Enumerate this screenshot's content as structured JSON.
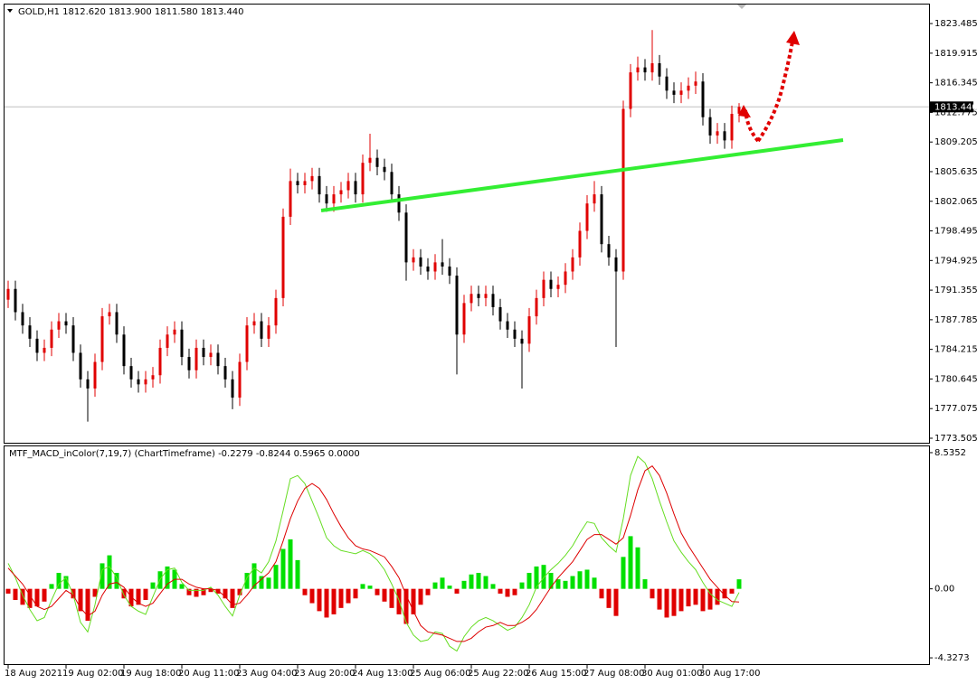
{
  "chart_data": [
    {
      "type": "candlestick",
      "title": "GOLD,H1  1812.620 1813.900 1811.580 1813.440",
      "categories": [
        "18 Aug 2021",
        null,
        null,
        null,
        null,
        null,
        null,
        null,
        "19 Aug 02:00",
        null,
        null,
        null,
        null,
        null,
        null,
        null,
        "19 Aug 18:00",
        null,
        null,
        null,
        null,
        null,
        null,
        null,
        "20 Aug 11:00",
        null,
        null,
        null,
        null,
        null,
        null,
        null,
        "23 Aug 04:00",
        null,
        null,
        null,
        null,
        null,
        null,
        null,
        "23 Aug 20:00",
        null,
        null,
        null,
        null,
        null,
        null,
        null,
        "24 Aug 13:00",
        null,
        null,
        null,
        null,
        null,
        null,
        null,
        "25 Aug 06:00",
        null,
        null,
        null,
        null,
        null,
        null,
        null,
        "25 Aug 22:00",
        null,
        null,
        null,
        null,
        null,
        null,
        null,
        "26 Aug 15:00",
        null,
        null,
        null,
        null,
        null,
        null,
        null,
        "27 Aug 08:00",
        null,
        null,
        null,
        null,
        null,
        null,
        null,
        "30 Aug 01:00",
        null,
        null,
        null,
        null,
        null,
        null,
        null,
        "30 Aug 17:00",
        null,
        null,
        null,
        null,
        null
      ],
      "open": [
        1790.2,
        1791.5,
        1788.7,
        1787.1,
        1785.5,
        1783.8,
        1784.4,
        1786.6,
        1787.6,
        1787.1,
        1783.8,
        1780.6,
        1779.5,
        1782.7,
        1788.2,
        1788.7,
        1786.0,
        1782.2,
        1780.6,
        1780.0,
        1780.6,
        1781.1,
        1784.4,
        1786.0,
        1786.6,
        1783.3,
        1781.7,
        1784.4,
        1783.3,
        1783.8,
        1782.2,
        1780.6,
        1778.4,
        1782.7,
        1787.1,
        1787.6,
        1785.5,
        1787.1,
        1790.4,
        1800.2,
        1804.5,
        1804.0,
        1804.5,
        1805.1,
        1802.9,
        1801.8,
        1802.9,
        1803.4,
        1804.5,
        1802.9,
        1806.7,
        1807.3,
        1806.2,
        1805.6,
        1802.9,
        1800.7,
        1794.7,
        1795.3,
        1794.2,
        1793.6,
        1794.7,
        1794.2,
        1793.1,
        1786.0,
        1789.8,
        1790.9,
        1790.4,
        1790.9,
        1789.3,
        1787.6,
        1786.6,
        1785.5,
        1784.9,
        1788.2,
        1790.4,
        1792.6,
        1791.5,
        1792.0,
        1793.6,
        1795.3,
        1798.5,
        1801.8,
        1802.9,
        1796.9,
        1795.3,
        1793.6,
        1813.2,
        1817.6,
        1818.2,
        1817.6,
        1818.7,
        1817.1,
        1815.4,
        1814.9,
        1815.4,
        1816.0,
        1816.5,
        1812.2,
        1810.0,
        1810.5,
        1809.4,
        1812.62
      ],
      "high": [
        1792.5,
        1792.5,
        1789.7,
        1788.1,
        1786.5,
        1785.4,
        1787.6,
        1788.6,
        1788.6,
        1788.1,
        1784.8,
        1781.6,
        1783.7,
        1789.2,
        1789.7,
        1789.7,
        1787.0,
        1783.2,
        1781.6,
        1781.6,
        1782.1,
        1785.4,
        1787.0,
        1787.6,
        1787.6,
        1784.3,
        1785.4,
        1785.4,
        1784.8,
        1784.8,
        1783.2,
        1781.6,
        1783.7,
        1788.1,
        1788.6,
        1788.6,
        1788.1,
        1791.4,
        1801.2,
        1806.0,
        1805.5,
        1805.5,
        1806.1,
        1806.1,
        1803.9,
        1803.9,
        1804.4,
        1805.5,
        1805.5,
        1807.7,
        1810.2,
        1808.3,
        1807.2,
        1806.6,
        1803.9,
        1801.7,
        1796.3,
        1796.3,
        1795.2,
        1795.7,
        1797.5,
        1795.2,
        1794.1,
        1790.8,
        1791.9,
        1791.9,
        1791.9,
        1791.9,
        1790.3,
        1788.6,
        1787.6,
        1786.5,
        1789.2,
        1791.4,
        1793.6,
        1793.6,
        1793.0,
        1794.6,
        1796.3,
        1799.5,
        1802.8,
        1804.5,
        1803.9,
        1797.9,
        1796.3,
        1814.2,
        1818.6,
        1819.5,
        1819.2,
        1822.7,
        1819.7,
        1818.1,
        1816.4,
        1816.4,
        1817.0,
        1817.7,
        1817.5,
        1813.2,
        1811.5,
        1811.5,
        1813.6,
        1813.9
      ],
      "low": [
        1789.2,
        1787.7,
        1786.1,
        1784.5,
        1782.8,
        1782.8,
        1783.4,
        1785.6,
        1786.1,
        1782.8,
        1779.6,
        1775.5,
        1778.5,
        1781.7,
        1787.2,
        1785.0,
        1781.2,
        1779.6,
        1779.0,
        1779.0,
        1779.6,
        1780.1,
        1783.4,
        1785.0,
        1782.3,
        1780.7,
        1780.7,
        1782.3,
        1782.3,
        1781.2,
        1779.6,
        1777.0,
        1777.4,
        1781.7,
        1786.1,
        1784.5,
        1784.5,
        1786.1,
        1789.4,
        1799.2,
        1803.0,
        1803.0,
        1803.5,
        1801.9,
        1800.8,
        1800.8,
        1801.9,
        1802.4,
        1801.9,
        1801.9,
        1805.7,
        1805.2,
        1804.6,
        1801.9,
        1799.7,
        1792.5,
        1793.7,
        1793.2,
        1792.6,
        1792.6,
        1793.2,
        1792.1,
        1781.2,
        1785.0,
        1788.8,
        1789.4,
        1789.4,
        1788.3,
        1786.6,
        1785.6,
        1784.5,
        1779.5,
        1783.9,
        1787.2,
        1789.4,
        1790.5,
        1790.5,
        1791.0,
        1792.6,
        1794.3,
        1797.5,
        1800.8,
        1795.9,
        1794.3,
        1784.5,
        1792.6,
        1812.2,
        1816.6,
        1816.6,
        1816.6,
        1816.1,
        1814.4,
        1813.9,
        1813.9,
        1814.4,
        1815.0,
        1811.2,
        1809.0,
        1809.0,
        1808.4,
        1808.4,
        1811.58
      ],
      "close": [
        1791.5,
        1788.7,
        1787.1,
        1785.5,
        1783.8,
        1784.4,
        1786.6,
        1787.6,
        1787.1,
        1783.8,
        1780.6,
        1779.5,
        1782.7,
        1788.2,
        1788.7,
        1786.0,
        1782.2,
        1780.6,
        1780.0,
        1780.6,
        1781.1,
        1784.4,
        1786.0,
        1786.6,
        1783.3,
        1781.7,
        1784.4,
        1783.3,
        1783.8,
        1782.2,
        1780.6,
        1778.4,
        1782.7,
        1787.1,
        1787.6,
        1785.5,
        1787.1,
        1790.4,
        1800.2,
        1804.5,
        1804.0,
        1804.5,
        1805.1,
        1802.9,
        1801.8,
        1802.9,
        1803.4,
        1804.5,
        1802.9,
        1806.7,
        1807.3,
        1806.2,
        1805.6,
        1802.9,
        1800.7,
        1794.7,
        1795.3,
        1794.2,
        1793.6,
        1794.7,
        1794.2,
        1793.1,
        1786.0,
        1789.8,
        1790.9,
        1790.4,
        1790.9,
        1789.3,
        1787.6,
        1786.6,
        1785.5,
        1784.9,
        1788.2,
        1790.4,
        1792.6,
        1791.5,
        1792.0,
        1793.6,
        1795.3,
        1798.5,
        1801.8,
        1802.9,
        1796.9,
        1795.3,
        1793.6,
        1813.2,
        1817.6,
        1818.2,
        1817.6,
        1818.7,
        1817.1,
        1815.4,
        1814.9,
        1815.4,
        1816.0,
        1816.5,
        1812.2,
        1810.0,
        1810.5,
        1809.4,
        1812.6,
        1813.44
      ],
      "up_color": "#e00000",
      "down_color": "#000000",
      "ylim": [
        1772.96,
        1825.78
      ],
      "yticks": [
        1823.485,
        1819.915,
        1816.345,
        1812.775,
        1809.205,
        1805.635,
        1802.065,
        1798.495,
        1794.925,
        1791.355,
        1787.785,
        1784.215,
        1780.645,
        1777.075,
        1773.505
      ],
      "last_price": {
        "value": 1813.44,
        "label": "1813.440"
      }
    },
    {
      "type": "macd",
      "title": "MTF_MACD_inColor(7,19,7) (ChartTimeframe) -0.2279 -0.8244 0.5965 0.0000",
      "series": [
        {
          "type": "bar",
          "color": "#00e000",
          "negative_color": "#e00000",
          "values": [
            -0.3,
            -0.7,
            -1.0,
            -1.2,
            -1.1,
            -0.8,
            0.3,
            1.0,
            0.8,
            -0.6,
            -1.4,
            -2.0,
            -0.5,
            1.6,
            2.1,
            1.0,
            -0.6,
            -1.1,
            -1.0,
            -0.7,
            0.4,
            1.1,
            1.4,
            1.2,
            0.3,
            -0.4,
            -0.5,
            -0.4,
            -0.2,
            -0.3,
            -0.6,
            -1.2,
            -0.4,
            1.0,
            1.6,
            0.8,
            0.7,
            1.5,
            2.5,
            3.1,
            1.8,
            -0.4,
            -0.9,
            -1.4,
            -1.8,
            -1.6,
            -1.2,
            -0.9,
            -0.6,
            0.3,
            0.2,
            -0.4,
            -0.8,
            -1.2,
            -1.6,
            -2.2,
            -1.6,
            -1.0,
            -0.4,
            0.4,
            0.7,
            0.2,
            -0.3,
            0.5,
            0.9,
            1.0,
            0.8,
            0.3,
            -0.3,
            -0.5,
            -0.4,
            0.4,
            1.0,
            1.4,
            1.5,
            1.0,
            0.6,
            0.5,
            0.8,
            1.1,
            1.2,
            0.7,
            -0.6,
            -1.2,
            -1.7,
            2.0,
            3.3,
            2.6,
            0.6,
            -0.6,
            -1.3,
            -1.8,
            -1.7,
            -1.4,
            -1.1,
            -1.0,
            -1.4,
            -1.3,
            -1.0,
            -0.6,
            -0.3,
            0.5965
          ]
        },
        {
          "type": "line",
          "color": "#66dd22",
          "values": [
            1.6,
            0.7,
            -0.4,
            -1.3,
            -2.0,
            -1.8,
            -0.7,
            0.3,
            0.7,
            -0.4,
            -2.1,
            -2.7,
            -1.0,
            1.2,
            1.4,
            0.7,
            -0.4,
            -1.1,
            -1.4,
            -1.6,
            -0.5,
            0.6,
            1.2,
            1.3,
            0.4,
            -0.1,
            -0.1,
            -0.1,
            0.1,
            -0.4,
            -1.1,
            -1.7,
            -0.4,
            0.7,
            1.3,
            1.0,
            1.7,
            3.0,
            4.9,
            6.9,
            7.1,
            6.6,
            5.5,
            4.4,
            3.2,
            2.7,
            2.4,
            2.3,
            2.2,
            2.4,
            2.2,
            1.8,
            1.2,
            0.3,
            -0.7,
            -2.1,
            -2.9,
            -3.3,
            -3.2,
            -2.7,
            -2.8,
            -3.6,
            -3.9,
            -3.0,
            -2.4,
            -2.0,
            -1.8,
            -2.0,
            -2.3,
            -2.6,
            -2.4,
            -1.8,
            -1.0,
            0.1,
            0.7,
            1.2,
            1.6,
            2.1,
            2.7,
            3.5,
            4.2,
            4.1,
            3.2,
            2.7,
            2.3,
            4.4,
            7.1,
            8.3,
            7.9,
            6.9,
            5.5,
            4.2,
            3.0,
            2.3,
            1.7,
            1.2,
            0.4,
            -0.3,
            -0.7,
            -0.9,
            -1.1,
            -0.2279
          ]
        },
        {
          "type": "line",
          "color": "#dd0000",
          "values": [
            1.3,
            0.8,
            0.3,
            -0.4,
            -1.1,
            -1.3,
            -1.1,
            -0.6,
            -0.1,
            -0.4,
            -1.2,
            -1.7,
            -1.4,
            -0.4,
            0.3,
            0.4,
            0.1,
            -0.5,
            -0.9,
            -1.1,
            -0.9,
            -0.3,
            0.3,
            0.6,
            0.6,
            0.3,
            0.1,
            0.0,
            0.0,
            -0.1,
            -0.5,
            -1.0,
            -0.9,
            -0.4,
            0.2,
            0.6,
            1.0,
            1.7,
            3.0,
            4.4,
            5.5,
            6.3,
            6.6,
            6.3,
            5.6,
            4.7,
            3.9,
            3.2,
            2.7,
            2.5,
            2.4,
            2.2,
            2.0,
            1.4,
            0.7,
            -0.4,
            -1.4,
            -2.3,
            -2.7,
            -2.8,
            -2.9,
            -3.1,
            -3.3,
            -3.3,
            -3.1,
            -2.7,
            -2.4,
            -2.3,
            -2.1,
            -2.3,
            -2.3,
            -2.1,
            -1.8,
            -1.3,
            -0.6,
            0.1,
            0.7,
            1.2,
            1.7,
            2.4,
            3.1,
            3.4,
            3.4,
            3.1,
            2.8,
            3.2,
            4.6,
            6.2,
            7.4,
            7.7,
            7.1,
            6.0,
            4.7,
            3.5,
            2.7,
            2.0,
            1.3,
            0.6,
            0.1,
            -0.4,
            -0.8,
            -0.8244
          ]
        }
      ],
      "ylim": [
        -4.72,
        8.93
      ],
      "yticks": [
        8.5352,
        {
          "value": 0,
          "label": "0.00"
        },
        -4.3273
      ]
    }
  ]
}
